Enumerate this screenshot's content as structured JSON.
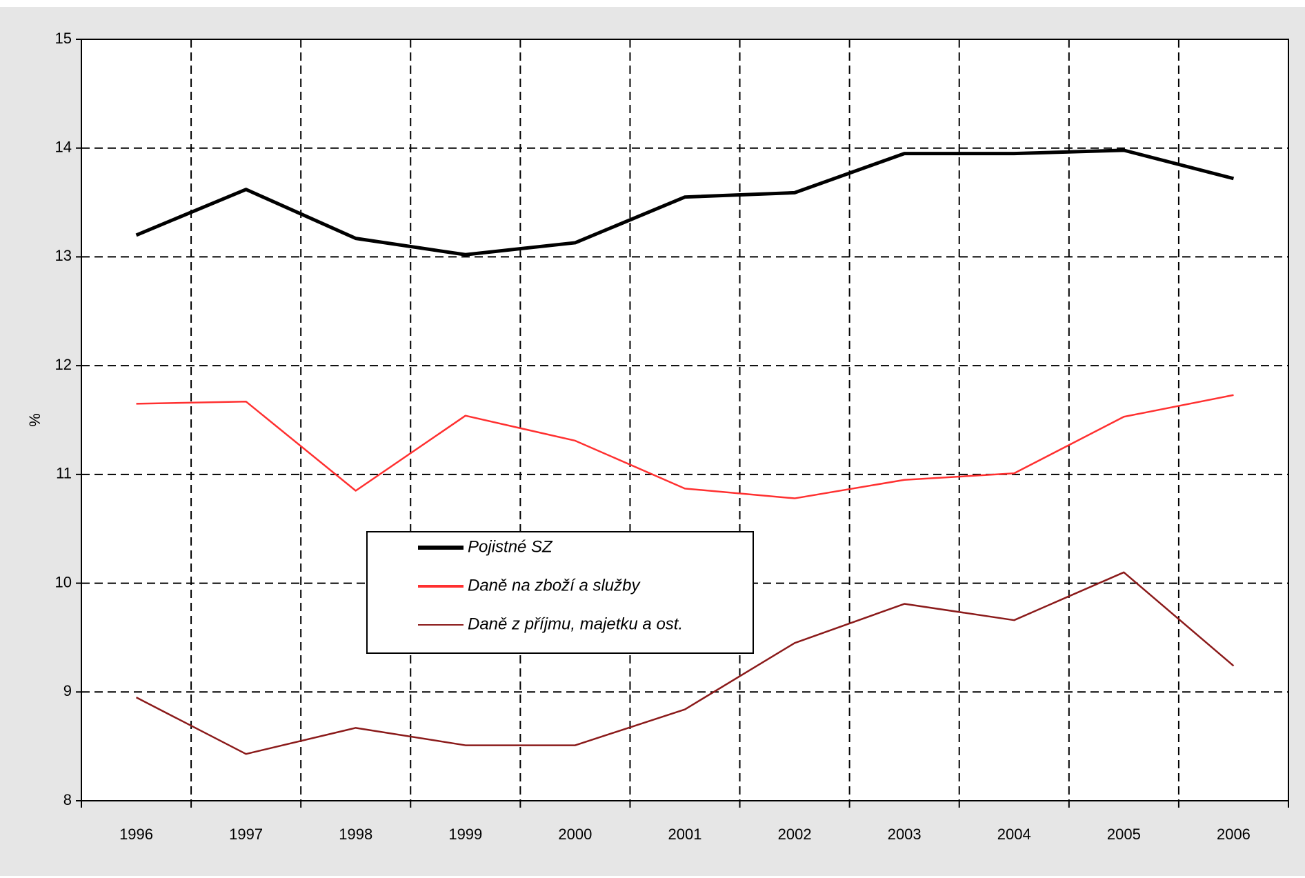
{
  "chart_data": {
    "type": "line",
    "categories": [
      "1996",
      "1997",
      "1998",
      "1999",
      "2000",
      "2001",
      "2002",
      "2003",
      "2004",
      "2005",
      "2006"
    ],
    "series": [
      {
        "name": "Pojistné SZ",
        "color": "#000000",
        "values": [
          13.2,
          13.62,
          13.17,
          13.02,
          13.13,
          13.55,
          13.59,
          13.95,
          13.95,
          13.98,
          13.72
        ]
      },
      {
        "name": "Daně na zboží a služby",
        "color": "#ff3030",
        "values": [
          11.65,
          11.67,
          10.85,
          11.54,
          11.31,
          10.87,
          10.78,
          10.95,
          11.01,
          11.53,
          11.73
        ]
      },
      {
        "name": "Daně z příjmu, majetku a ost.",
        "color": "#8b1a1a",
        "values": [
          8.95,
          8.43,
          8.67,
          8.51,
          8.51,
          8.84,
          9.45,
          9.81,
          9.66,
          10.1,
          9.24
        ]
      }
    ],
    "y_label": "%",
    "ylim": [
      8,
      15
    ],
    "yticks": [
      8,
      9,
      10,
      11,
      12,
      13,
      14,
      15
    ],
    "grid": true
  }
}
